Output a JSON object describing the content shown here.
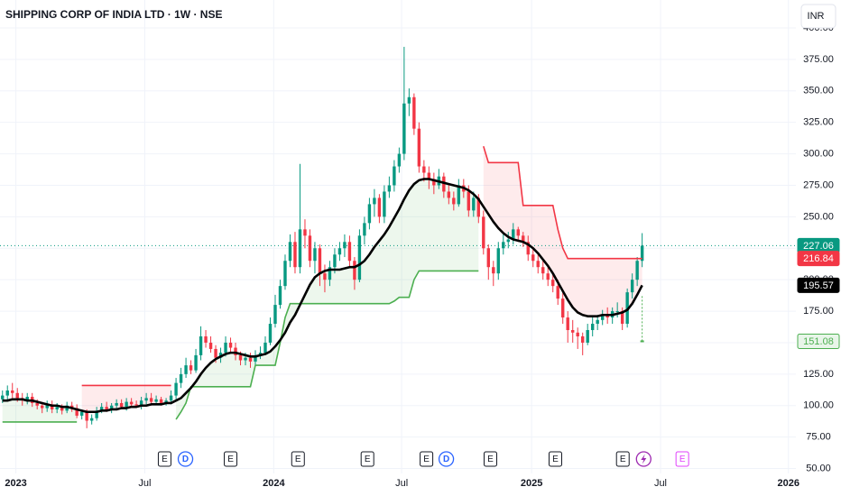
{
  "header": {
    "title": "SHIPPING CORP OF INDIA LTD · 1W · NSE",
    "currency": "INR"
  },
  "chart_data": {
    "type": "candlestick",
    "open": [
      105,
      108,
      112,
      110,
      106,
      104,
      107,
      102,
      100,
      98,
      101,
      97,
      99,
      96,
      100,
      98,
      92,
      95,
      88,
      90,
      96,
      99,
      97,
      100,
      102,
      99,
      103,
      101,
      100,
      104,
      106,
      103,
      105,
      102,
      104,
      108,
      118,
      125,
      132,
      128,
      140,
      155,
      150,
      145,
      138,
      142,
      150,
      146,
      140,
      136,
      138,
      135,
      140,
      142,
      150,
      165,
      180,
      195,
      215,
      230,
      210,
      240,
      235,
      215,
      225,
      205,
      200,
      210,
      220,
      225,
      230,
      215,
      200,
      235,
      245,
      260,
      265,
      250,
      270,
      275,
      290,
      300,
      340,
      345,
      320,
      290,
      285,
      280,
      275,
      282,
      270,
      265,
      260,
      275,
      270,
      255,
      265,
      250,
      225,
      210,
      205,
      225,
      230,
      232,
      240,
      235,
      230,
      220,
      215,
      210,
      205,
      200,
      195,
      185,
      170,
      160,
      158,
      155,
      150,
      160,
      165,
      168,
      172,
      170,
      175,
      175,
      165,
      190,
      200,
      215
    ],
    "high": [
      112,
      116,
      118,
      114,
      110,
      110,
      110,
      105,
      103,
      104,
      104,
      102,
      101,
      103,
      103,
      101,
      97,
      97,
      93,
      99,
      102,
      103,
      102,
      105,
      105,
      106,
      106,
      104,
      107,
      110,
      110,
      108,
      107,
      106,
      112,
      122,
      130,
      138,
      136,
      145,
      163,
      160,
      155,
      148,
      146,
      155,
      154,
      150,
      143,
      142,
      142,
      144,
      147,
      155,
      170,
      188,
      200,
      220,
      236,
      238,
      292,
      248,
      240,
      230,
      228,
      212,
      215,
      225,
      230,
      236,
      235,
      218,
      240,
      250,
      265,
      272,
      268,
      275,
      282,
      295,
      305,
      385,
      352,
      348,
      325,
      295,
      290,
      285,
      288,
      285,
      275,
      270,
      280,
      280,
      275,
      270,
      268,
      255,
      228,
      215,
      230,
      236,
      238,
      245,
      242,
      238,
      235,
      225,
      220,
      215,
      210,
      205,
      200,
      190,
      175,
      168,
      162,
      158,
      165,
      170,
      172,
      176,
      178,
      178,
      182,
      178,
      193,
      205,
      218,
      237
    ],
    "low": [
      102,
      104,
      106,
      103,
      100,
      101,
      99,
      97,
      94,
      95,
      94,
      94,
      93,
      94,
      95,
      90,
      89,
      82,
      85,
      88,
      94,
      95,
      94,
      97,
      97,
      96,
      99,
      98,
      97,
      101,
      100,
      101,
      100,
      100,
      101,
      105,
      114,
      122,
      125,
      126,
      136,
      146,
      142,
      134,
      134,
      139,
      142,
      136,
      132,
      132,
      130,
      132,
      137,
      140,
      148,
      162,
      177,
      192,
      210,
      205,
      205,
      225,
      210,
      205,
      195,
      190,
      195,
      205,
      215,
      218,
      210,
      192,
      198,
      228,
      240,
      250,
      245,
      245,
      265,
      270,
      285,
      295,
      330,
      315,
      285,
      278,
      272,
      268,
      272,
      265,
      260,
      255,
      258,
      265,
      250,
      250,
      245,
      220,
      200,
      195,
      200,
      220,
      225,
      228,
      230,
      226,
      215,
      210,
      205,
      200,
      195,
      190,
      180,
      165,
      150,
      150,
      145,
      140,
      148,
      155,
      160,
      164,
      165,
      165,
      170,
      160,
      162,
      185,
      195,
      210
    ],
    "close": [
      108,
      112,
      110,
      106,
      104,
      107,
      102,
      100,
      98,
      101,
      97,
      99,
      96,
      100,
      98,
      92,
      95,
      88,
      90,
      96,
      99,
      97,
      100,
      102,
      99,
      103,
      101,
      100,
      104,
      106,
      103,
      105,
      102,
      104,
      108,
      118,
      125,
      132,
      128,
      140,
      155,
      150,
      145,
      138,
      142,
      150,
      146,
      140,
      136,
      138,
      135,
      140,
      142,
      150,
      165,
      180,
      195,
      215,
      230,
      210,
      240,
      235,
      215,
      225,
      205,
      200,
      210,
      220,
      225,
      230,
      215,
      200,
      235,
      245,
      260,
      265,
      250,
      270,
      275,
      290,
      300,
      340,
      345,
      320,
      290,
      285,
      280,
      275,
      282,
      270,
      265,
      260,
      275,
      270,
      255,
      265,
      250,
      225,
      210,
      205,
      225,
      230,
      232,
      240,
      235,
      230,
      220,
      215,
      210,
      205,
      200,
      195,
      185,
      170,
      160,
      158,
      155,
      150,
      160,
      165,
      168,
      172,
      170,
      175,
      175,
      165,
      190,
      200,
      215,
      227.06
    ],
    "up_color": "#089981",
    "down_color": "#f23645",
    "moving_average": {
      "color": "#000000",
      "values": [
        104,
        104,
        105,
        105,
        105,
        104,
        104,
        103,
        102,
        101,
        100,
        100,
        99,
        99,
        98,
        97,
        96,
        95,
        95,
        95,
        96,
        96,
        97,
        97,
        98,
        98,
        99,
        99,
        100,
        100,
        101,
        101,
        101,
        102,
        102,
        104,
        106,
        110,
        114,
        119,
        125,
        130,
        134,
        137,
        139,
        141,
        142,
        142,
        141,
        140,
        139,
        139,
        140,
        141,
        143,
        147,
        152,
        158,
        166,
        172,
        180,
        188,
        196,
        202,
        205,
        207,
        208,
        208,
        208,
        209,
        210,
        210,
        212,
        215,
        220,
        226,
        231,
        236,
        242,
        249,
        256,
        264,
        271,
        276,
        279,
        280,
        280,
        279,
        278,
        277,
        276,
        275,
        274,
        273,
        271,
        268,
        264,
        258,
        252,
        246,
        241,
        237,
        234,
        232,
        231,
        230,
        228,
        225,
        221,
        216,
        211,
        205,
        198,
        191,
        184,
        178,
        174,
        172,
        171,
        171,
        171,
        172,
        172,
        172,
        173,
        174,
        176,
        181,
        188,
        195.57
      ]
    },
    "supertrend_up": {
      "color": "#4caf50",
      "fill": "rgba(76,175,80,0.10)",
      "values": [
        87,
        87,
        87,
        87,
        87,
        87,
        87,
        87,
        87,
        87,
        87,
        87,
        87,
        87,
        87,
        87,
        null,
        null,
        null,
        null,
        null,
        null,
        null,
        null,
        null,
        null,
        null,
        null,
        null,
        null,
        null,
        null,
        null,
        null,
        null,
        89,
        95,
        102,
        115,
        115,
        115,
        115,
        115,
        115,
        115,
        115,
        115,
        115,
        115,
        115,
        115,
        132,
        132,
        132,
        132,
        132,
        150,
        170,
        181,
        181,
        181,
        181,
        181,
        181,
        181,
        181,
        181,
        181,
        181,
        181,
        181,
        181,
        181,
        181,
        181,
        181,
        181,
        181,
        181,
        183,
        186,
        186,
        186,
        200,
        207,
        207,
        207,
        207,
        207,
        207,
        207,
        207,
        207,
        207,
        207,
        207,
        207,
        null,
        null,
        null,
        null,
        null,
        null,
        null,
        null,
        null,
        null,
        null,
        null,
        null,
        null,
        null,
        null,
        null,
        null,
        null,
        null,
        null,
        null,
        null,
        null,
        null,
        null,
        null,
        null,
        null,
        null,
        null,
        null
      ]
    },
    "supertrend_down": {
      "color": "#f23645",
      "fill": "rgba(242,54,69,0.10)",
      "values": [
        null,
        null,
        null,
        null,
        null,
        null,
        null,
        null,
        null,
        null,
        null,
        null,
        null,
        null,
        null,
        null,
        116,
        116,
        116,
        116,
        116,
        116,
        116,
        116,
        116,
        116,
        116,
        116,
        116,
        116,
        116,
        116,
        116,
        116,
        116,
        null,
        null,
        null,
        null,
        null,
        null,
        null,
        null,
        null,
        null,
        null,
        null,
        null,
        null,
        null,
        null,
        null,
        null,
        null,
        null,
        null,
        null,
        null,
        null,
        null,
        null,
        null,
        null,
        null,
        null,
        null,
        null,
        null,
        null,
        null,
        null,
        null,
        null,
        null,
        null,
        null,
        null,
        null,
        null,
        null,
        null,
        null,
        null,
        null,
        null,
        null,
        null,
        null,
        null,
        null,
        null,
        null,
        null,
        null,
        null,
        null,
        null,
        306,
        293,
        293,
        293,
        293,
        293,
        293,
        293,
        259,
        259,
        259,
        259,
        259,
        259,
        259,
        240,
        225,
        216.84,
        216.84,
        216.84,
        216.84,
        216.84,
        216.84,
        216.84,
        216.84,
        216.84,
        216.84,
        216.84,
        216.84,
        216.84,
        216.84,
        216.84,
        216.84
      ]
    },
    "marker": {
      "value": 151.08,
      "color": "#4caf50"
    },
    "xlim": [
      -0.5,
      160
    ],
    "xticks": [
      {
        "value": 2.7,
        "label": "2023"
      },
      {
        "value": 28.7,
        "label": "Jul"
      },
      {
        "value": 54.7,
        "label": "2024"
      },
      {
        "value": 80.5,
        "label": "Jul"
      },
      {
        "value": 106.7,
        "label": "2025"
      },
      {
        "value": 132.7,
        "label": "Jul"
      },
      {
        "value": 158.5,
        "label": "2026"
      }
    ],
    "ylim": [
      46.1,
      422.2
    ],
    "yticks": [
      {
        "value": 50,
        "label": "50.00"
      },
      {
        "value": 75,
        "label": "75.00"
      },
      {
        "value": 100,
        "label": "100.00"
      },
      {
        "value": 125,
        "label": "125.00"
      },
      {
        "value": 150,
        "label": "150.00"
      },
      {
        "value": 175,
        "label": "175.00"
      },
      {
        "value": 200,
        "label": "200.00"
      },
      {
        "value": 225,
        "label": "225.00"
      },
      {
        "value": 250,
        "label": "250.00"
      },
      {
        "value": 275,
        "label": "275.00"
      },
      {
        "value": 300,
        "label": "300.00"
      },
      {
        "value": 325,
        "label": "325.00"
      },
      {
        "value": 350,
        "label": "350.00"
      },
      {
        "value": 375,
        "label": "375.00"
      },
      {
        "value": 400,
        "label": "400.00"
      }
    ],
    "grid": true,
    "events": [
      {
        "label": "E",
        "x": 32.7,
        "color": "#131722"
      },
      {
        "label": "D",
        "x": 36.9,
        "color": "#2962ff"
      },
      {
        "label": "E",
        "x": 46,
        "color": "#131722"
      },
      {
        "label": "E",
        "x": 59.6,
        "color": "#131722"
      },
      {
        "label": "E",
        "x": 73.6,
        "color": "#131722"
      },
      {
        "label": "E",
        "x": 85.5,
        "color": "#131722"
      },
      {
        "label": "D",
        "x": 89.5,
        "color": "#2962ff"
      },
      {
        "label": "E",
        "x": 98.4,
        "color": "#131722"
      },
      {
        "label": "E",
        "x": 111.5,
        "color": "#131722"
      },
      {
        "label": "E",
        "x": 125.1,
        "color": "#131722"
      },
      {
        "x": 129.3,
        "color": "#9c27b0"
      },
      {
        "label": "E",
        "x": 137.1,
        "color": "#e040fb"
      }
    ]
  }
}
